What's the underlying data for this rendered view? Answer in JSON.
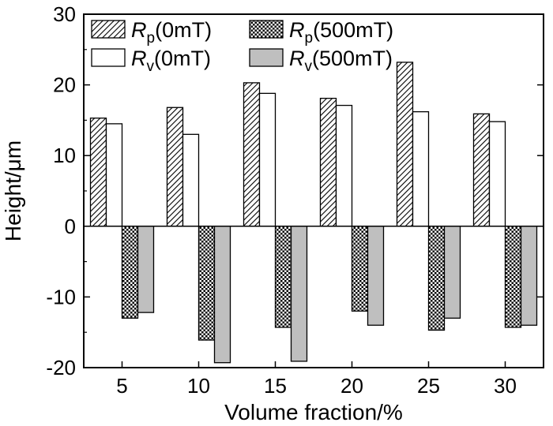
{
  "chart_data": {
    "type": "bar",
    "xlabel": "Volume fraction/%",
    "ylabel": "Height/μm",
    "categories": [
      "5",
      "10",
      "15",
      "20",
      "25",
      "30"
    ],
    "ylim": [
      -20,
      30
    ],
    "yticks": [
      -20,
      -10,
      0,
      10,
      20,
      30
    ],
    "grid": false,
    "legend_position": "top-left",
    "series": [
      {
        "name": "Rp(0mT)",
        "symbol": "R",
        "subscript": "p",
        "field": "(0mT)",
        "pattern": "hatch",
        "color": "#000000",
        "values": [
          15.3,
          16.8,
          20.3,
          18.1,
          23.2,
          15.9
        ]
      },
      {
        "name": "Rv(0mT)",
        "symbol": "R",
        "subscript": "v",
        "field": "(0mT)",
        "pattern": "white",
        "color": "#ffffff",
        "values": [
          14.5,
          13.0,
          18.8,
          17.1,
          16.2,
          14.8
        ]
      },
      {
        "name": "Rp(500mT)",
        "symbol": "R",
        "subscript": "p",
        "field": "(500mT)",
        "pattern": "crosshatch",
        "color": "#000000",
        "values": [
          -13.0,
          -16.1,
          -14.3,
          -12.0,
          -14.7,
          -14.3
        ]
      },
      {
        "name": "Rv(500mT)",
        "symbol": "R",
        "subscript": "v",
        "field": "(500mT)",
        "pattern": "gray",
        "color": "#bfbfbf",
        "values": [
          -12.2,
          -19.3,
          -19.1,
          -14.0,
          -13.0,
          -14.0
        ]
      }
    ]
  }
}
